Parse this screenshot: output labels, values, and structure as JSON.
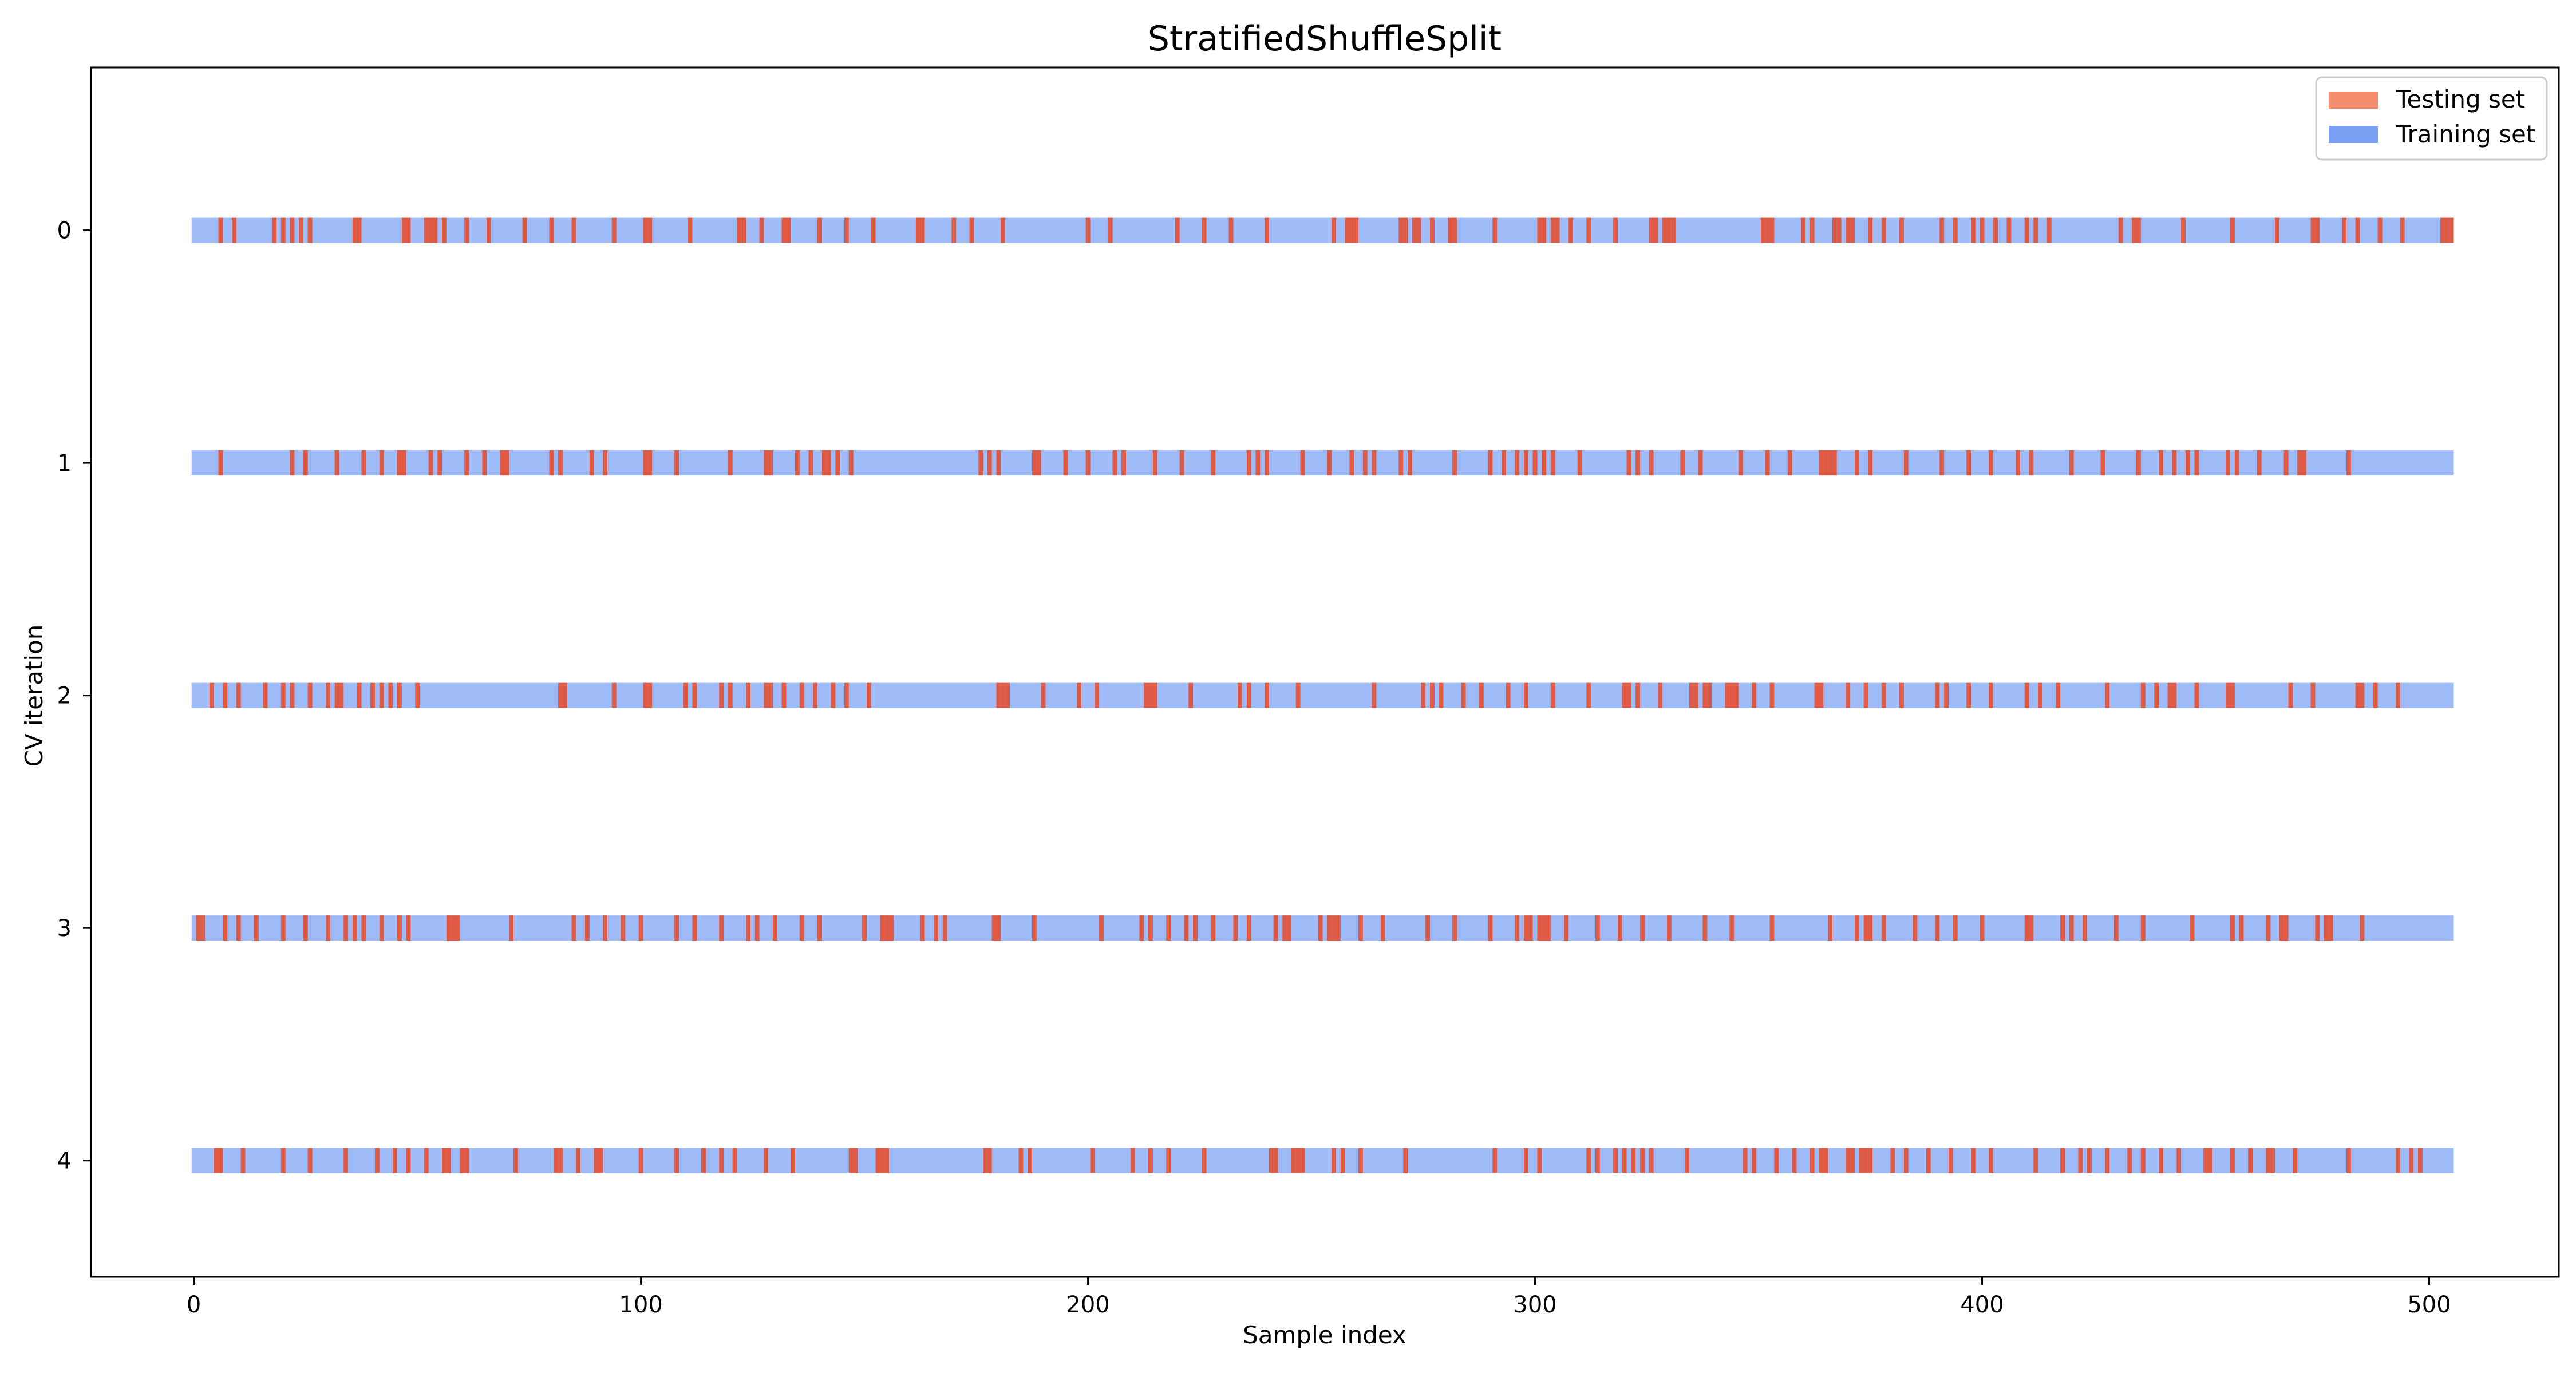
{
  "chart_data": {
    "type": "bar",
    "title": "StratifiedShuffleSplit",
    "xlabel": "Sample index",
    "ylabel": "CV iteration",
    "xlim": [
      -23,
      529
    ],
    "ylim": [
      4.5,
      -0.7
    ],
    "n_samples": 506,
    "x_ticks": [
      0,
      100,
      200,
      300,
      400,
      500
    ],
    "x_tick_labels": [
      "0",
      "100",
      "200",
      "300",
      "400",
      "500"
    ],
    "y_ticks": [
      0,
      1,
      2,
      3,
      4
    ],
    "y_tick_labels": [
      "0",
      "1",
      "2",
      "3",
      "4"
    ],
    "grid": false,
    "legend": {
      "position": "top-right",
      "entries": [
        {
          "label": "Testing set",
          "color": "#f48d6e"
        },
        {
          "label": "Training set",
          "color": "#7b9ff2"
        }
      ]
    },
    "colors": {
      "testing_mark": "#de5a45",
      "training_bar": "#9ebbf8",
      "legend_testing": "#f48d6e",
      "legend_training": "#7b9ff2"
    },
    "series": [
      {
        "iteration": 0,
        "test_indices": [
          6,
          9,
          18,
          20,
          22,
          24,
          26,
          36,
          37,
          47,
          48,
          52,
          53,
          54,
          56,
          61,
          66,
          74,
          80,
          85,
          94,
          101,
          102,
          111,
          122,
          123,
          127,
          132,
          133,
          140,
          146,
          152,
          162,
          163,
          170,
          174,
          181,
          200,
          205,
          220,
          226,
          232,
          240,
          255,
          258,
          259,
          260,
          270,
          271,
          273,
          274,
          277,
          281,
          282,
          291,
          301,
          302,
          304,
          305,
          308,
          312,
          318,
          326,
          327,
          329,
          330,
          331,
          351,
          352,
          353,
          360,
          362,
          367,
          368,
          370,
          371,
          375,
          378,
          382,
          391,
          394,
          398,
          400,
          403,
          406,
          410,
          412,
          415,
          431,
          434,
          435,
          445,
          456,
          466,
          474,
          475,
          481,
          484,
          489,
          494,
          503,
          504,
          505
        ]
      },
      {
        "iteration": 1,
        "test_indices": [
          6,
          22,
          25,
          32,
          38,
          42,
          46,
          47,
          53,
          55,
          61,
          65,
          69,
          70,
          80,
          82,
          89,
          92,
          101,
          102,
          108,
          120,
          128,
          129,
          135,
          138,
          141,
          142,
          144,
          147,
          176,
          178,
          180,
          188,
          189,
          195,
          200,
          206,
          208,
          215,
          221,
          228,
          236,
          238,
          240,
          248,
          254,
          259,
          262,
          264,
          270,
          272,
          282,
          290,
          293,
          296,
          298,
          300,
          302,
          304,
          310,
          321,
          323,
          326,
          333,
          337,
          346,
          352,
          357,
          364,
          365,
          366,
          367,
          372,
          375,
          383,
          391,
          397,
          402,
          408,
          411,
          420,
          427,
          435,
          440,
          443,
          446,
          448,
          455,
          457,
          462,
          468,
          471,
          472,
          482
        ]
      },
      {
        "iteration": 2,
        "test_indices": [
          4,
          7,
          10,
          16,
          20,
          22,
          26,
          30,
          32,
          33,
          37,
          40,
          42,
          44,
          46,
          50,
          82,
          83,
          94,
          101,
          102,
          110,
          112,
          118,
          120,
          124,
          128,
          129,
          132,
          136,
          139,
          143,
          146,
          151,
          180,
          181,
          182,
          190,
          198,
          202,
          213,
          214,
          215,
          223,
          234,
          236,
          240,
          247,
          264,
          275,
          277,
          279,
          284,
          288,
          294,
          298,
          304,
          312,
          320,
          321,
          323,
          328,
          335,
          336,
          338,
          339,
          343,
          344,
          345,
          349,
          353,
          363,
          364,
          370,
          374,
          378,
          382,
          390,
          392,
          397,
          402,
          410,
          413,
          417,
          428,
          436,
          439,
          442,
          443,
          448,
          455,
          456,
          469,
          474,
          484,
          485,
          488,
          493
        ]
      },
      {
        "iteration": 3,
        "test_indices": [
          1,
          2,
          7,
          10,
          14,
          20,
          25,
          30,
          34,
          36,
          38,
          42,
          46,
          48,
          57,
          58,
          59,
          71,
          85,
          88,
          92,
          96,
          100,
          108,
          112,
          118,
          124,
          126,
          130,
          136,
          140,
          150,
          154,
          155,
          156,
          163,
          166,
          168,
          179,
          180,
          188,
          203,
          212,
          214,
          218,
          222,
          224,
          228,
          233,
          236,
          242,
          244,
          245,
          252,
          254,
          255,
          256,
          261,
          266,
          276,
          282,
          290,
          296,
          298,
          299,
          301,
          302,
          303,
          307,
          314,
          319,
          324,
          330,
          338,
          344,
          353,
          366,
          372,
          374,
          375,
          378,
          385,
          390,
          394,
          400,
          410,
          411,
          418,
          420,
          423,
          430,
          436,
          447,
          456,
          458,
          464,
          467,
          468,
          475,
          477,
          478,
          485
        ]
      },
      {
        "iteration": 4,
        "test_indices": [
          5,
          6,
          11,
          20,
          26,
          34,
          41,
          45,
          48,
          52,
          56,
          57,
          60,
          61,
          72,
          81,
          82,
          86,
          90,
          91,
          100,
          108,
          114,
          118,
          121,
          128,
          134,
          147,
          148,
          153,
          154,
          155,
          177,
          178,
          185,
          187,
          201,
          210,
          214,
          218,
          226,
          241,
          242,
          246,
          247,
          248,
          255,
          257,
          261,
          271,
          291,
          298,
          301,
          312,
          314,
          318,
          320,
          322,
          324,
          326,
          334,
          347,
          349,
          354,
          358,
          362,
          364,
          365,
          370,
          371,
          373,
          374,
          375,
          380,
          383,
          388,
          393,
          398,
          402,
          412,
          418,
          422,
          424,
          428,
          433,
          436,
          440,
          444,
          450,
          451,
          456,
          460,
          464,
          465,
          470,
          482,
          493,
          496,
          498
        ]
      }
    ]
  }
}
